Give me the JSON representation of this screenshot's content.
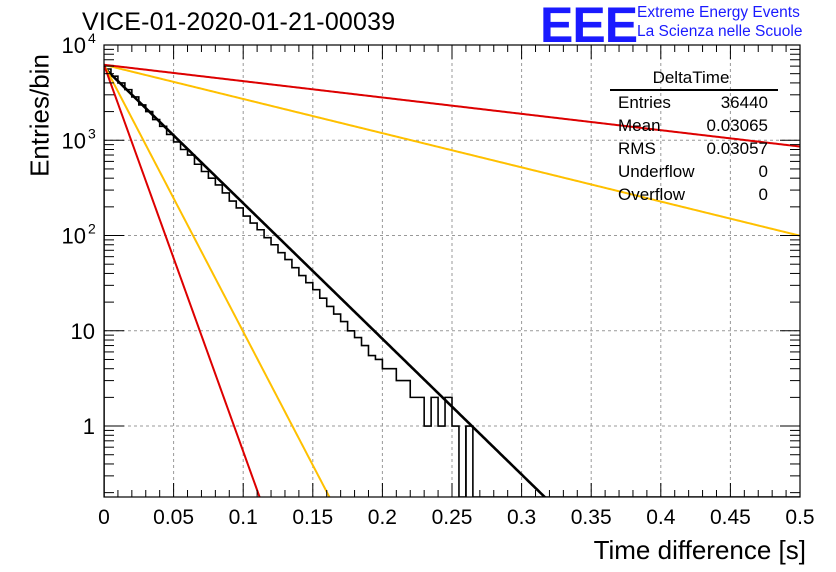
{
  "title": "VICE-01-2020-01-21-00039",
  "logo": {
    "mark": "EEE",
    "line1": "Extreme Energy Events",
    "line2": "La Scienza nelle Scuole",
    "color": "#1a1aff"
  },
  "stats": {
    "name": "DeltaTime",
    "rows": [
      {
        "label": "Entries",
        "value": "36440"
      },
      {
        "label": "Mean",
        "value": "0.03065"
      },
      {
        "label": "RMS",
        "value": "0.03057"
      },
      {
        "label": "Underflow",
        "value": "0"
      },
      {
        "label": "Overflow",
        "value": "0"
      }
    ]
  },
  "chart_data": {
    "type": "histogram",
    "title": "VICE-01-2020-01-21-00039",
    "xlabel": "Time difference [s]",
    "ylabel": "Entries/bin",
    "xlim": [
      0,
      0.5
    ],
    "ylim": [
      0.18,
      10000
    ],
    "yscale": "log",
    "grid": true,
    "x_ticks": [
      "0",
      "0.05",
      "0.1",
      "0.15",
      "0.2",
      "0.25",
      "0.3",
      "0.35",
      "0.4",
      "0.45",
      "0.5"
    ],
    "y_ticks": [
      {
        "value": 1,
        "label": "1"
      },
      {
        "value": 10,
        "label": "10"
      },
      {
        "value": 100,
        "label": "10",
        "exp": "2"
      },
      {
        "value": 1000,
        "label": "10",
        "exp": "3"
      },
      {
        "value": 10000,
        "label": "10",
        "exp": "4"
      }
    ],
    "bin_width": 0.005,
    "histogram_values": [
      5600,
      4700,
      4000,
      3400,
      2850,
      2350,
      2000,
      1650,
      1400,
      1150,
      960,
      800,
      700,
      560,
      470,
      400,
      340,
      280,
      230,
      195,
      160,
      135,
      115,
      95,
      80,
      66,
      56,
      46,
      38,
      32,
      27,
      22,
      18,
      15,
      12.5,
      10,
      8.5,
      7,
      5.5,
      5,
      4,
      4,
      3,
      3,
      2,
      2,
      1,
      2,
      1,
      2,
      1,
      0,
      1,
      0,
      0,
      0,
      0,
      0,
      0,
      0,
      0,
      0,
      0,
      0,
      0,
      0,
      0,
      0,
      0,
      0,
      0,
      0,
      0,
      0,
      0,
      0,
      0,
      0,
      0,
      0,
      0,
      0,
      0,
      0,
      0,
      0,
      0,
      0,
      0,
      0,
      0,
      0,
      0,
      0,
      0,
      0,
      0,
      0,
      0,
      0
    ],
    "series": [
      {
        "color": "#000000",
        "type": "exp_fit",
        "y0": 5800,
        "tau": 0.0305
      },
      {
        "color": "#ffc000",
        "type": "exp",
        "y0": 6200,
        "tau": 0.0155
      },
      {
        "color": "#dd0000",
        "type": "exp",
        "y0": 6200,
        "tau": 0.0107
      },
      {
        "color": "#ffc000",
        "type": "exp",
        "y0": 6200,
        "tau": 0.121
      },
      {
        "color": "#dd0000",
        "type": "exp",
        "y0": 6200,
        "tau": 0.253
      }
    ]
  }
}
